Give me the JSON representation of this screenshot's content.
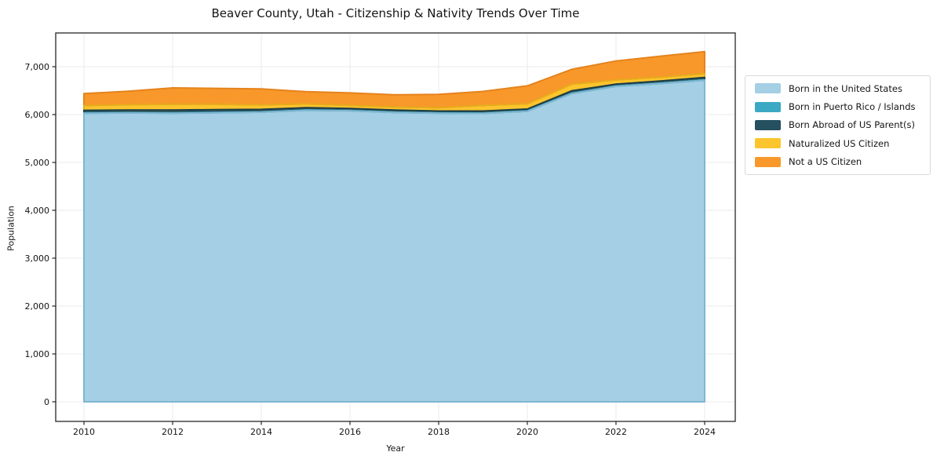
{
  "title": "Beaver County, Utah - Citizenship & Nativity Trends Over Time",
  "chart_data": {
    "type": "area",
    "stacked": true,
    "title": "Beaver County, Utah - Citizenship & Nativity Trends Over Time",
    "xlabel": "Year",
    "ylabel": "Population",
    "grid": true,
    "legend_position": "right-outside",
    "x": [
      2010,
      2011,
      2012,
      2013,
      2014,
      2015,
      2016,
      2017,
      2018,
      2019,
      2020,
      2021,
      2022,
      2023,
      2024
    ],
    "x_tick_labels": [
      "2010",
      "2012",
      "2014",
      "2016",
      "2018",
      "2020",
      "2022",
      "2024"
    ],
    "x_ticks": [
      2010,
      2012,
      2014,
      2016,
      2018,
      2020,
      2022,
      2024
    ],
    "y_ticks": [
      0,
      1000,
      2000,
      3000,
      4000,
      5000,
      6000,
      7000
    ],
    "y_tick_labels": [
      "0",
      "1,000",
      "2,000",
      "3,000",
      "4,000",
      "5,000",
      "6,000",
      "7,000"
    ],
    "ylim": [
      -410,
      7705
    ],
    "xlim": [
      2009.35,
      2024.7
    ],
    "series": [
      {
        "name": "Born in the United States",
        "color": "#a4cfe4",
        "edge_color": "#7eb6d2",
        "values": [
          6030,
          6035,
          6030,
          6040,
          6050,
          6090,
          6080,
          6045,
          6030,
          6025,
          6070,
          6440,
          6590,
          6650,
          6720
        ]
      },
      {
        "name": "Born in Puerto Rico / Islands",
        "color": "#3ba8c4",
        "edge_color": "#2f8fa9",
        "values": [
          8,
          8,
          8,
          8,
          8,
          8,
          8,
          8,
          8,
          8,
          10,
          10,
          10,
          10,
          10
        ]
      },
      {
        "name": "Born Abroad of US Parent(s)",
        "color": "#24505f",
        "edge_color": "#1a3d49",
        "values": [
          50,
          50,
          55,
          55,
          50,
          45,
          40,
          40,
          35,
          40,
          35,
          45,
          35,
          40,
          45
        ]
      },
      {
        "name": "Naturalized US Citizen",
        "color": "#fcc42d",
        "edge_color": "#e8ab1e",
        "values": [
          100,
          115,
          125,
          115,
          95,
          80,
          65,
          65,
          70,
          120,
          110,
          140,
          90,
          80,
          80
        ]
      },
      {
        "name": "Not a US Citizen",
        "color": "#f8982a",
        "edge_color": "#e5831c",
        "values": [
          250,
          280,
          340,
          330,
          335,
          255,
          260,
          255,
          280,
          290,
          375,
          310,
          395,
          440,
          460
        ]
      }
    ],
    "totals": [
      6438,
      6488,
      6558,
      6548,
      6538,
      6478,
      6453,
      6413,
      6423,
      6483,
      6600,
      6945,
      7120,
      7220,
      7315
    ]
  }
}
